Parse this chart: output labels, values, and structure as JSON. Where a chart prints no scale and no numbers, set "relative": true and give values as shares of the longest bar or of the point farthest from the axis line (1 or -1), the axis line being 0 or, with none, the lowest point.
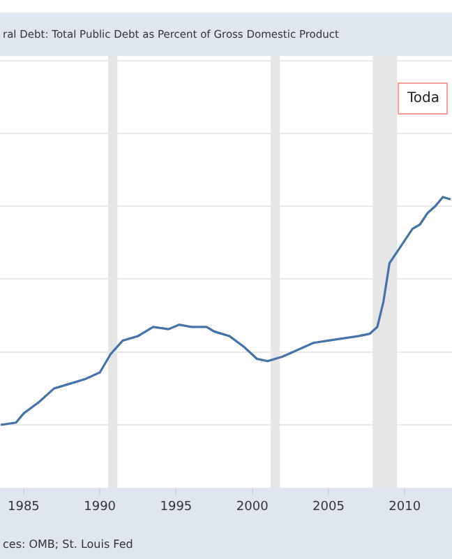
{
  "chart_data": {
    "type": "line",
    "title": "ral Debt: Total Public Debt as Percent of Gross Domestic Product",
    "relative": true,
    "x": [
      1983.5,
      1984.5,
      1985,
      1986,
      1987,
      1988,
      1989,
      1990,
      1990.7,
      1991.5,
      1992.5,
      1993.5,
      1994.5,
      1995.2,
      1996,
      1997,
      1997.5,
      1998.5,
      1999.5,
      2000.3,
      2001,
      2002,
      2003,
      2004,
      2005,
      2006,
      2007,
      2007.7,
      2008.2,
      2008.6,
      2009,
      2009.5,
      2010,
      2010.5,
      2011,
      2011.5,
      2012,
      2012.5,
      2013
    ],
    "series": [
      {
        "color": "#4572a7",
        "values": [
          0,
          0.01,
          0.05,
          0.1,
          0.16,
          0.18,
          0.2,
          0.23,
          0.31,
          0.37,
          0.39,
          0.43,
          0.42,
          0.44,
          0.43,
          0.43,
          0.41,
          0.39,
          0.34,
          0.29,
          0.28,
          0.3,
          0.33,
          0.36,
          0.37,
          0.38,
          0.39,
          0.4,
          0.43,
          0.54,
          0.71,
          0.76,
          0.81,
          0.86,
          0.88,
          0.93,
          0.96,
          1,
          0.99
        ]
      }
    ],
    "xlim": [
      1983.45,
      2013.1
    ],
    "xticks": [
      1985,
      1990,
      1995,
      2000,
      2005,
      2010
    ],
    "bands": [
      {
        "axis": "x",
        "from": 1990.55,
        "to": 1991.15,
        "color": "#e6e6e6"
      },
      {
        "axis": "x",
        "from": 2001.2,
        "to": 2001.8,
        "color": "#e6e6e6"
      },
      {
        "axis": "x",
        "from": 2007.9,
        "to": 2009.5,
        "color": "#e6e6e6"
      }
    ],
    "annotations": [
      "Toda",
      "ces: OMB; St. Louis Fed"
    ],
    "grid": "y",
    "marker": "none",
    "line_style": "solid"
  }
}
